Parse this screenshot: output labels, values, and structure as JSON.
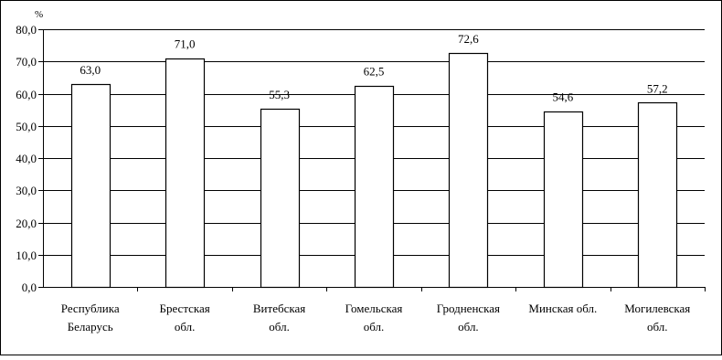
{
  "chart_data": {
    "type": "bar",
    "y_unit": "%",
    "ylim": [
      0,
      80
    ],
    "y_ticks": [
      "0,0",
      "10,0",
      "20,0",
      "30,0",
      "40,0",
      "50,0",
      "60,0",
      "70,0",
      "80,0"
    ],
    "grid": "horizontal",
    "categories": [
      [
        "Республика",
        "Беларусь"
      ],
      [
        "Брестская",
        "обл."
      ],
      [
        "Витебская",
        "обл."
      ],
      [
        "Гомельская",
        "обл."
      ],
      [
        "Гродненская",
        "обл."
      ],
      [
        "Минская обл."
      ],
      [
        "Могилевская",
        "обл."
      ]
    ],
    "values": [
      63.0,
      71.0,
      55.3,
      62.5,
      72.6,
      54.6,
      57.2
    ],
    "value_labels": [
      "63,0",
      "71,0",
      "55,3",
      "62,5",
      "72,6",
      "54,6",
      "57,2"
    ],
    "bar_color": "#ffffff",
    "bar_stroke": "#000000"
  }
}
